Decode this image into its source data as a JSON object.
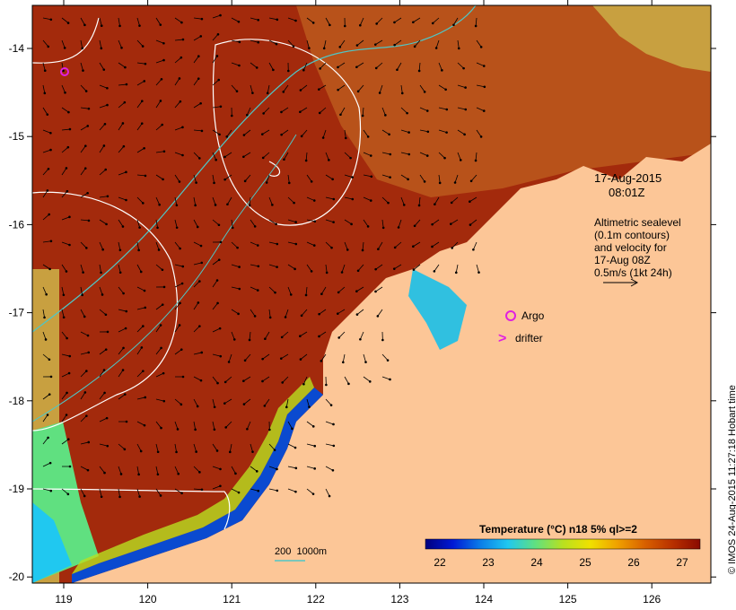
{
  "map": {
    "longitudes": [
      "119",
      "120",
      "121",
      "122",
      "123",
      "124",
      "125",
      "126"
    ],
    "latitudes": [
      "-14",
      "-15",
      "-16",
      "-17",
      "-18",
      "-19",
      "-20"
    ],
    "timestamp_date": "17-Aug-2015",
    "timestamp_time": "08:01Z",
    "info_lines": [
      "Altimetric sealevel",
      "(0.1m contours)",
      "and velocity for",
      "17-Aug 08Z",
      "0.5m/s (1kt 24h)"
    ],
    "legend_argo": "Argo",
    "legend_drifter": "drifter",
    "scale_label": "200  1000m",
    "colorbar": {
      "title": "Temperature (°C) n18 5% ql>=2",
      "ticks": [
        "22",
        "23",
        "24",
        "25",
        "26",
        "27"
      ],
      "stops": [
        "#00007f",
        "#0019d5",
        "#0a7de8",
        "#20c8f0",
        "#60e080",
        "#b8e020",
        "#f0e000",
        "#f0a000",
        "#d86000",
        "#b83000",
        "#8a0a00"
      ]
    },
    "credit": "© IMOS 24-Aug-2015 11:27:18 Hobart time"
  },
  "colors": {
    "land": "#fcc697",
    "sst_warm": "#a32a0c",
    "sst_mid": "#b64a14",
    "contour_white": "#ffffff",
    "isobath": "#4fc6c6",
    "argo": "#e020e0"
  }
}
